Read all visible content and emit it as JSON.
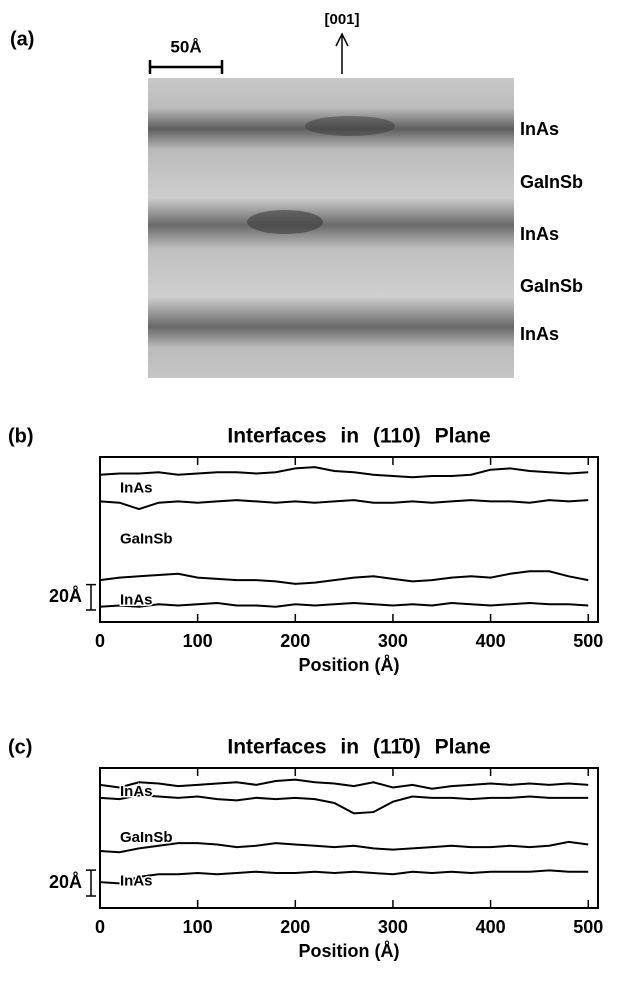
{
  "panel_a": {
    "label": "(a)",
    "scale_bar": "50Å",
    "direction": "[001]",
    "layers": [
      "InAs",
      "GaInSb",
      "InAs",
      "GaInSb",
      "InAs"
    ]
  },
  "chart_data": [
    {
      "type": "line",
      "panel_label": "(b)",
      "title": "Interfaces in (110) Plane",
      "x_label": "Position (Å)",
      "x": [
        0,
        20,
        40,
        60,
        80,
        100,
        120,
        140,
        160,
        180,
        200,
        220,
        240,
        260,
        280,
        300,
        320,
        340,
        360,
        380,
        400,
        420,
        440,
        460,
        480,
        500
      ],
      "xlim": [
        0,
        510
      ],
      "xticks": [
        0,
        100,
        200,
        300,
        400,
        500
      ],
      "ylim": [
        0,
        130
      ],
      "scale_bar": {
        "value": 20,
        "label": "20Å"
      },
      "annotations": [
        "InAs",
        "GaInSb",
        "InAs"
      ],
      "series": [
        {
          "color": "#000000",
          "values": [
            116,
            117,
            117,
            118,
            116,
            117,
            118,
            118,
            117,
            118,
            121,
            122,
            119,
            118,
            116,
            115,
            114,
            115,
            115,
            116,
            120,
            121,
            119,
            118,
            117,
            118
          ]
        },
        {
          "color": "#000000",
          "values": [
            95,
            94,
            89,
            94,
            95,
            94,
            95,
            96,
            95,
            94,
            95,
            94,
            95,
            96,
            94,
            94,
            95,
            94,
            95,
            96,
            95,
            95,
            94,
            96,
            95,
            96
          ]
        },
        {
          "color": "#000000",
          "values": [
            33,
            35,
            36,
            37,
            38,
            35,
            34,
            33,
            33,
            32,
            30,
            31,
            33,
            35,
            36,
            34,
            32,
            33,
            35,
            36,
            35,
            38,
            40,
            40,
            36,
            33
          ]
        },
        {
          "color": "#000000",
          "values": [
            12,
            13,
            12,
            14,
            13,
            14,
            15,
            13,
            13,
            12,
            14,
            13,
            14,
            15,
            14,
            13,
            14,
            13,
            15,
            14,
            13,
            14,
            15,
            14,
            14,
            13
          ]
        }
      ]
    },
    {
      "type": "line",
      "panel_label": "(c)",
      "title": "Interfaces in (11̄0) Plane",
      "x_label": "Position (Å)",
      "x": [
        0,
        20,
        40,
        60,
        80,
        100,
        120,
        140,
        160,
        180,
        200,
        220,
        240,
        260,
        280,
        300,
        320,
        340,
        360,
        380,
        400,
        420,
        440,
        460,
        480,
        500
      ],
      "xlim": [
        0,
        510
      ],
      "xticks": [
        0,
        100,
        200,
        300,
        400,
        500
      ],
      "ylim": [
        0,
        108
      ],
      "scale_bar": {
        "value": 20,
        "label": "20Å"
      },
      "annotations": [
        "InAs",
        "GaInSb",
        "InAs"
      ],
      "series": [
        {
          "color": "#000000",
          "values": [
            95,
            93,
            97,
            96,
            94,
            95,
            96,
            97,
            95,
            98,
            99,
            97,
            96,
            94,
            97,
            93,
            95,
            92,
            94,
            95,
            96,
            95,
            96,
            95,
            96,
            95
          ]
        },
        {
          "color": "#000000",
          "values": [
            85,
            84,
            87,
            86,
            85,
            86,
            84,
            83,
            85,
            84,
            85,
            84,
            81,
            73,
            74,
            82,
            86,
            85,
            85,
            84,
            85,
            85,
            86,
            85,
            85,
            85
          ]
        },
        {
          "color": "#000000",
          "values": [
            44,
            43,
            46,
            48,
            50,
            50,
            49,
            47,
            48,
            50,
            49,
            48,
            47,
            48,
            46,
            45,
            46,
            47,
            48,
            47,
            47,
            48,
            47,
            48,
            51,
            49
          ]
        },
        {
          "color": "#000000",
          "values": [
            20,
            19,
            24,
            26,
            26,
            27,
            26,
            27,
            28,
            27,
            27,
            28,
            27,
            28,
            27,
            26,
            28,
            27,
            28,
            27,
            28,
            28,
            28,
            29,
            28,
            28
          ]
        }
      ]
    }
  ]
}
